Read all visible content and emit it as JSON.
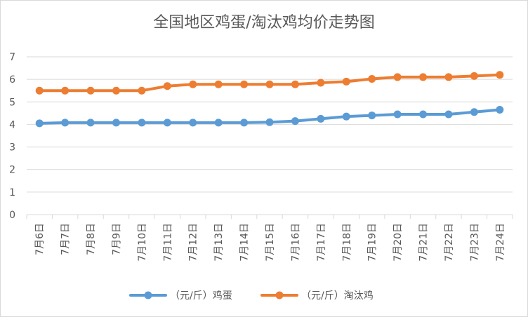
{
  "chart_data": {
    "type": "line",
    "title": "全国地区鸡蛋/淘汰鸡均价走势图",
    "categories": [
      "7月6日",
      "7月7日",
      "7月8日",
      "7月9日",
      "7月10日",
      "7月11日",
      "7月12日",
      "7月13日",
      "7月14日",
      "7月15日",
      "7月16日",
      "7月17日",
      "7月18日",
      "7月19日",
      "7月20日",
      "7月21日",
      "7月22日",
      "7月23日",
      "7月24日"
    ],
    "series": [
      {
        "name": "（元/斤）鸡蛋",
        "color": "#5b9bd5",
        "values": [
          4.05,
          4.08,
          4.08,
          4.08,
          4.08,
          4.08,
          4.08,
          4.08,
          4.08,
          4.1,
          4.15,
          4.25,
          4.35,
          4.4,
          4.45,
          4.45,
          4.45,
          4.55,
          4.65
        ]
      },
      {
        "name": "（元/斤）淘汰鸡",
        "color": "#ed7d31",
        "values": [
          5.5,
          5.5,
          5.5,
          5.5,
          5.5,
          5.7,
          5.78,
          5.78,
          5.78,
          5.78,
          5.78,
          5.85,
          5.9,
          6.02,
          6.1,
          6.1,
          6.1,
          6.15,
          6.2
        ]
      }
    ],
    "ylim": [
      0,
      7
    ],
    "yticks": [
      0,
      1,
      2,
      3,
      4,
      5,
      6,
      7
    ],
    "grid": true,
    "legend": "bottom"
  }
}
